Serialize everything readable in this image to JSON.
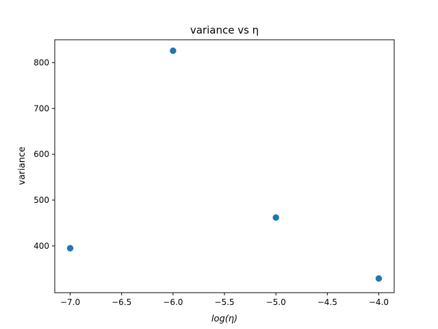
{
  "chart_data": {
    "type": "scatter",
    "title": "variance vs η",
    "xlabel": "log(η)",
    "ylabel": "variance",
    "xlim": [
      -7.15,
      -3.85
    ],
    "ylim": [
      298,
      850
    ],
    "x_ticks": [
      -7.0,
      -6.5,
      -6.0,
      -5.5,
      -5.0,
      -4.5,
      -4.0
    ],
    "x_tick_labels": [
      "−7.0",
      "−6.5",
      "−6.0",
      "−5.5",
      "−5.0",
      "−4.5",
      "−4.0"
    ],
    "y_ticks": [
      400,
      500,
      600,
      700,
      800
    ],
    "y_tick_labels": [
      "400",
      "500",
      "600",
      "700",
      "800"
    ],
    "series": [
      {
        "x": [
          -7.0,
          -6.0,
          -5.0,
          -4.0
        ],
        "y": [
          395,
          826,
          462,
          329
        ],
        "color": "#1f77b4"
      }
    ],
    "grid": false
  }
}
